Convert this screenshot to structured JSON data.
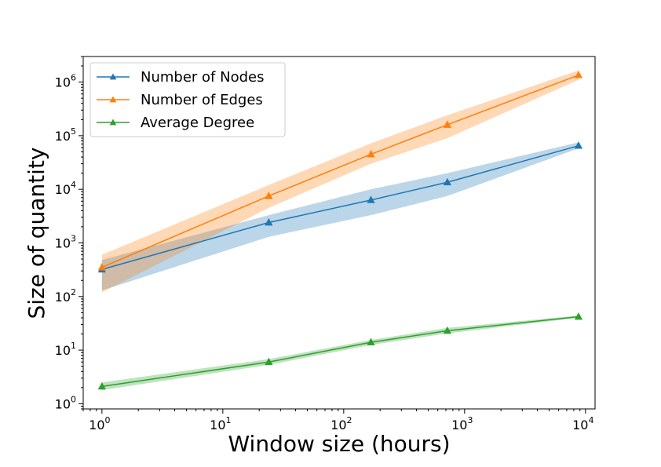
{
  "chart_data": {
    "type": "line",
    "xlabel": "Window size (hours)",
    "ylabel": "Size of quantity",
    "xscale": "log",
    "yscale": "log",
    "xlim": [
      0.7,
      12000
    ],
    "ylim": [
      0.8,
      3000000
    ],
    "x": [
      1,
      24,
      168,
      720,
      8760
    ],
    "xticks": [
      1,
      10,
      100,
      1000,
      10000
    ],
    "yticks": [
      1,
      10,
      100,
      1000,
      10000,
      100000,
      1000000
    ],
    "grid": false,
    "legend_position": "top-left",
    "series": [
      {
        "name": "Number of Nodes",
        "color": "#1f77b4",
        "marker": "triangle-up",
        "values": [
          320,
          2400,
          6300,
          13500,
          65000
        ],
        "band_lower": [
          130,
          1300,
          3300,
          7500,
          58000
        ],
        "band_upper": [
          480,
          3300,
          10000,
          20000,
          75000
        ]
      },
      {
        "name": "Number of Edges",
        "color": "#ff7f0e",
        "marker": "triangle-up",
        "values": [
          350,
          7500,
          45000,
          160000,
          1350000
        ],
        "band_lower": [
          120,
          4500,
          30000,
          90000,
          1100000
        ],
        "band_upper": [
          600,
          12000,
          72000,
          240000,
          1650000
        ]
      },
      {
        "name": "Average Degree",
        "color": "#2ca02c",
        "marker": "triangle-up",
        "values": [
          2.1,
          6.0,
          14,
          23,
          42
        ],
        "band_lower": [
          1.8,
          5.3,
          12.5,
          20.5,
          40
        ],
        "band_upper": [
          2.5,
          6.8,
          15.5,
          26,
          44
        ]
      }
    ]
  }
}
